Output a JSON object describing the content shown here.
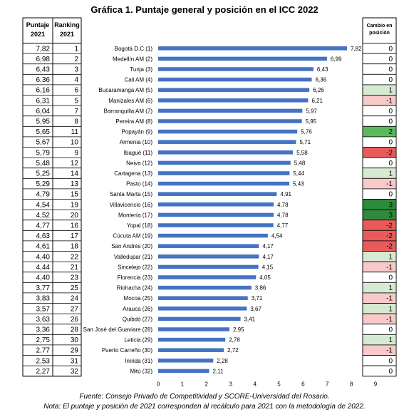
{
  "chart_data": {
    "type": "bar",
    "orientation": "horizontal",
    "title": "Gráfica 1. Puntaje general y posición en el ICC 2022",
    "left_table_headers": [
      "Puntaje 2021",
      "Ranking 2021"
    ],
    "right_table_header": "Cambio en posición",
    "categories": [
      "Bogotá D.C (1)",
      "Medellín AM (2)",
      "Tunja (3)",
      "Cali AM (4)",
      "Bucaramanga AM (5)",
      "Manizales AM (6)",
      "Barranquilla AM (7)",
      "Pereira AM (8)",
      "Popayán (9)",
      "Armenia (10)",
      "Ibagué (11)",
      "Neiva (12)",
      "Cartagena (13)",
      "Pasto (14)",
      "Santa Marta (15)",
      "Villavicencio (16)",
      "Montería (17)",
      "Yopal (18)",
      "Cúcuta AM (19)",
      "San Andrés (20)",
      "Valledupar (21)",
      "Sincelejo (22)",
      "Florencia (23)",
      "Riohacha (24)",
      "Mocoa (25)",
      "Arauca (26)",
      "Quibdó (27)",
      "San José del Guaviare (28)",
      "Leticia (29)",
      "Puerto Carreño (30)",
      "Inírida (31)",
      "Mitú (32)"
    ],
    "values": [
      7.82,
      6.99,
      6.43,
      6.36,
      6.26,
      6.21,
      5.97,
      5.95,
      5.76,
      5.71,
      5.58,
      5.48,
      5.44,
      5.43,
      4.91,
      4.78,
      4.78,
      4.77,
      4.54,
      4.17,
      4.17,
      4.15,
      4.05,
      3.86,
      3.71,
      3.67,
      3.41,
      2.95,
      2.78,
      2.72,
      2.28,
      2.11
    ],
    "value_labels": [
      "7,82",
      "6,99",
      "6,43",
      "6,36",
      "6,26",
      "6,21",
      "5,97",
      "5,95",
      "5,76",
      "5,71",
      "5,58",
      "5,48",
      "5,44",
      "5,43",
      "4,91",
      "4,78",
      "4,78",
      "4,77",
      "4,54",
      "4,17",
      "4,17",
      "4,15",
      "4,05",
      "3,86",
      "3,71",
      "3,67",
      "3,41",
      "2,95",
      "2,78",
      "2,72",
      "2,28",
      "2,11"
    ],
    "puntaje_2021": [
      "7,82",
      "6,98",
      "6,43",
      "6,36",
      "6,16",
      "6,31",
      "6,04",
      "5,95",
      "5,65",
      "5,67",
      "5,79",
      "5,48",
      "5,25",
      "5,29",
      "4,79",
      "4,54",
      "4,52",
      "4,77",
      "4,63",
      "4,61",
      "4,40",
      "4,44",
      "4,40",
      "3,77",
      "3,83",
      "3,57",
      "3,63",
      "3,36",
      "2,75",
      "2,77",
      "2,53",
      "2,27"
    ],
    "ranking_2021": [
      "1",
      "2",
      "3",
      "4",
      "6",
      "5",
      "7",
      "8",
      "11",
      "10",
      "9",
      "12",
      "14",
      "13",
      "15",
      "19",
      "20",
      "16",
      "17",
      "18",
      "22",
      "21",
      "23",
      "25",
      "24",
      "27",
      "26",
      "28",
      "30",
      "29",
      "31",
      "32"
    ],
    "cambio": [
      0,
      0,
      0,
      0,
      1,
      -1,
      0,
      0,
      2,
      0,
      -2,
      0,
      1,
      -1,
      0,
      3,
      3,
      -2,
      -2,
      -2,
      1,
      -1,
      0,
      1,
      -1,
      1,
      -1,
      0,
      1,
      -1,
      0,
      0
    ],
    "xlim": [
      0,
      9
    ],
    "xticks": [
      0,
      1,
      2,
      3,
      4,
      5,
      6,
      7,
      8,
      9
    ],
    "grid": false,
    "bar_color": "#4472c4",
    "change_colors": {
      "pos1": "#d6ead1",
      "pos2": "#5cb85c",
      "pos3": "#2e8b3c",
      "neg1": "#f7c9c9",
      "neg2": "#e95b5b",
      "zero": "#ffffff"
    }
  },
  "footer": {
    "source": "Fuente: Consejo Privado de Competitividad y SCORE-Universidad del Rosario.",
    "note": "Nota: El puntaje y posición de 2021 corresponden al recálculo para 2021 con la metodología de 2022."
  }
}
